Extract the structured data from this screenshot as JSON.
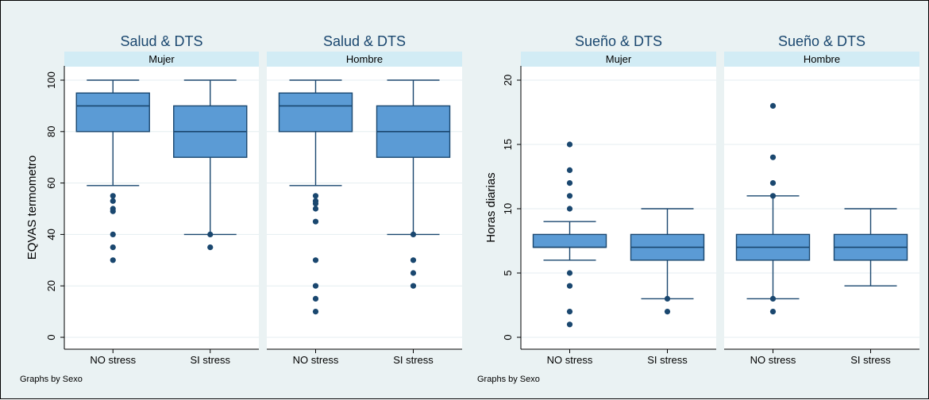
{
  "colors": {
    "background": "#eaf2f3",
    "plot_region": "#ffffff",
    "strip": "#d2ecf5",
    "box_fill": "#5b9bd5",
    "box_line": "#1a476f",
    "outlier": "#1a476f",
    "grid": "#e4eef0"
  },
  "chart_data": [
    {
      "type": "boxplot",
      "note": "Graphs by Sexo",
      "ylabel": "EQVAS termometro",
      "ylim": [
        0,
        100
      ],
      "yticks": [
        0,
        20,
        40,
        60,
        80,
        100
      ],
      "grid": true,
      "categories": [
        "NO stress",
        "SI stress"
      ],
      "panels": [
        {
          "title": "Salud & DTS",
          "strip": "Mujer",
          "boxes": [
            {
              "category": "NO stress",
              "whisker_low": 59,
              "q1": 80,
              "median": 90,
              "q3": 95,
              "whisker_high": 100,
              "outliers": [
                55,
                53,
                50,
                49,
                40,
                35,
                30
              ]
            },
            {
              "category": "SI stress",
              "whisker_low": 40,
              "q1": 70,
              "median": 80,
              "q3": 90,
              "whisker_high": 100,
              "outliers": [
                40,
                35
              ]
            }
          ]
        },
        {
          "title": "Salud & DTS",
          "strip": "Hombre",
          "boxes": [
            {
              "category": "NO stress",
              "whisker_low": 59,
              "q1": 80,
              "median": 90,
              "q3": 95,
              "whisker_high": 100,
              "outliers": [
                55,
                53,
                52,
                50,
                45,
                30,
                20,
                15,
                10
              ]
            },
            {
              "category": "SI stress",
              "whisker_low": 40,
              "q1": 70,
              "median": 80,
              "q3": 90,
              "whisker_high": 100,
              "outliers": [
                40,
                30,
                25,
                20
              ]
            }
          ]
        }
      ]
    },
    {
      "type": "boxplot",
      "note": "Graphs by Sexo",
      "ylabel": "Horas diarias",
      "ylim": [
        0,
        20
      ],
      "yticks": [
        0,
        5,
        10,
        15,
        20
      ],
      "grid": true,
      "categories": [
        "NO stress",
        "SI stress"
      ],
      "panels": [
        {
          "title": "Sueño & DTS",
          "strip": "Mujer",
          "boxes": [
            {
              "category": "NO stress",
              "whisker_low": 6,
              "q1": 7,
              "median": 7,
              "q3": 8,
              "whisker_high": 9,
              "outliers": [
                15,
                13,
                12,
                11,
                10,
                5,
                4,
                2,
                1
              ]
            },
            {
              "category": "SI stress",
              "whisker_low": 3,
              "q1": 6,
              "median": 7,
              "q3": 8,
              "whisker_high": 10,
              "outliers": [
                3,
                2
              ]
            }
          ]
        },
        {
          "title": "Sueño & DTS",
          "strip": "Hombre",
          "boxes": [
            {
              "category": "NO stress",
              "whisker_low": 3,
              "q1": 6,
              "median": 7,
              "q3": 8,
              "whisker_high": 11,
              "outliers": [
                18,
                14,
                12,
                11,
                3,
                2
              ]
            },
            {
              "category": "SI stress",
              "whisker_low": 4,
              "q1": 6,
              "median": 7,
              "q3": 8,
              "whisker_high": 10,
              "outliers": []
            }
          ]
        }
      ]
    }
  ]
}
